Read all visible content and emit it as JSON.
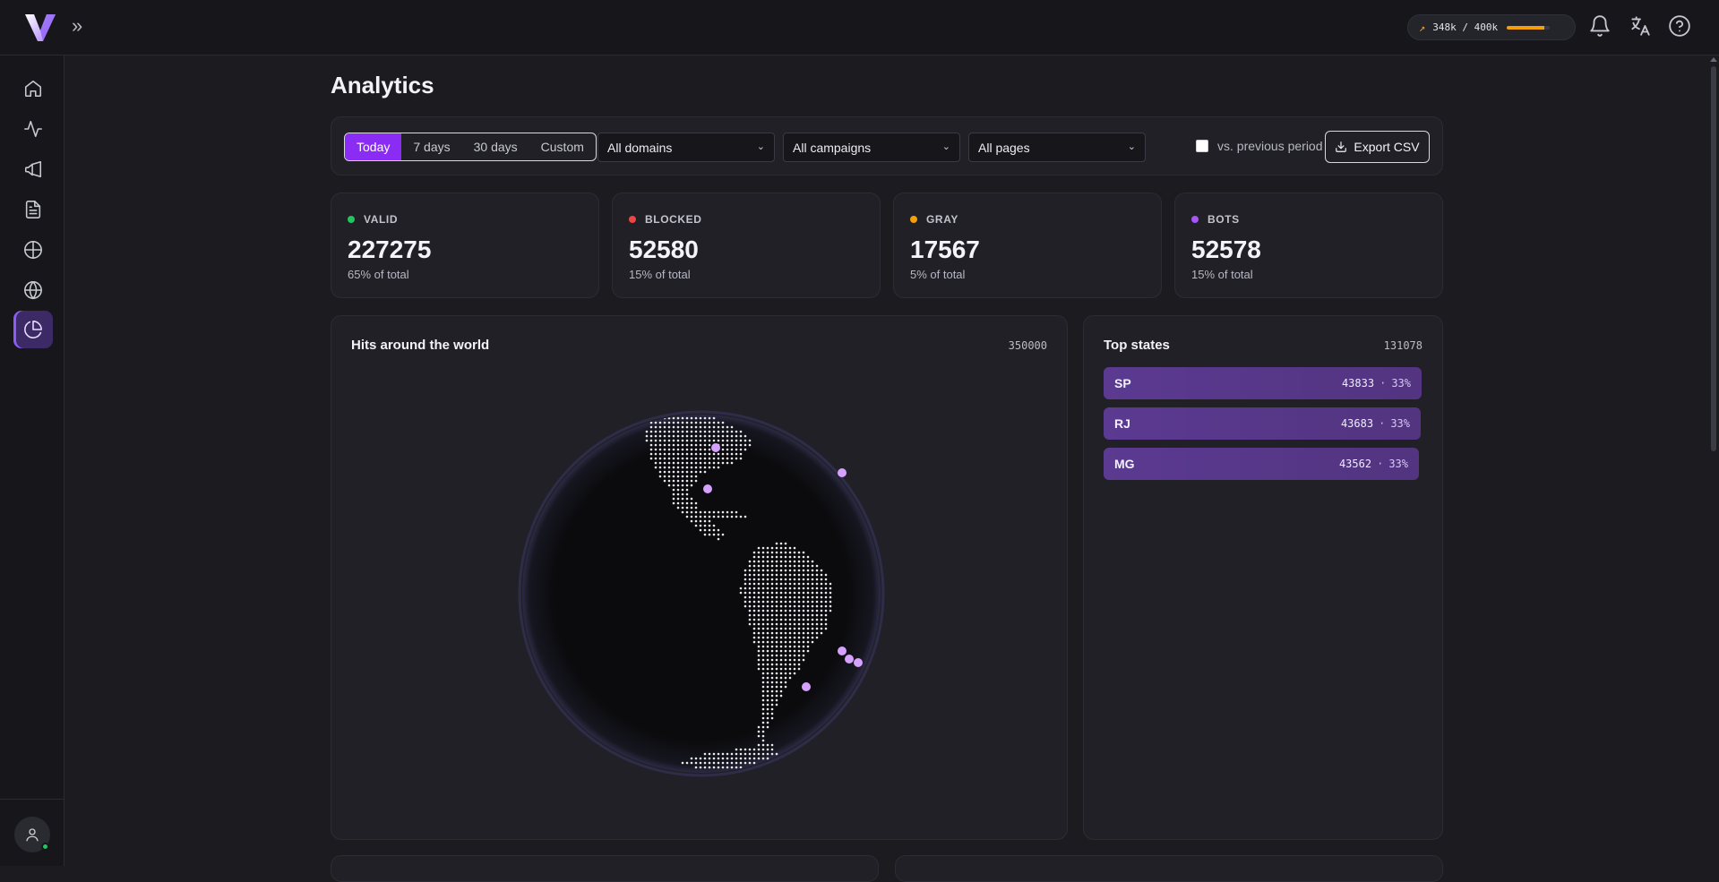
{
  "topbar": {
    "usage": {
      "used": "348k",
      "sep": "/",
      "limit": "400k",
      "fraction": 0.87
    }
  },
  "page": {
    "title": "Analytics"
  },
  "filters": {
    "ranges": [
      "Today",
      "7 days",
      "30 days",
      "Custom"
    ],
    "selected_range": "Today",
    "domain": "All domains",
    "campaign": "All campaigns",
    "page": "All pages",
    "compare_label": "vs. previous period",
    "export_label": "Export CSV"
  },
  "stats": [
    {
      "label": "VALID",
      "value": "227275",
      "sub": "65% of total",
      "color": "#22c55e"
    },
    {
      "label": "BLOCKED",
      "value": "52580",
      "sub": "15% of total",
      "color": "#ef4444"
    },
    {
      "label": "GRAY",
      "value": "17567",
      "sub": "5% of total",
      "color": "#f59e0b"
    },
    {
      "label": "BOTS",
      "value": "52578",
      "sub": "15% of total",
      "color": "#a855f7"
    }
  ],
  "world": {
    "title": "Hits around the world",
    "count": "350000"
  },
  "top_states": {
    "title": "Top states",
    "count": "131078",
    "rows": [
      {
        "code": "SP",
        "value": "43833",
        "pct": "33%"
      },
      {
        "code": "RJ",
        "value": "43683",
        "pct": "33%"
      },
      {
        "code": "MG",
        "value": "43562",
        "pct": "33%"
      }
    ]
  },
  "colors": {
    "accent": "#8b2cf5",
    "hit_marker": "#d6a0ff"
  }
}
